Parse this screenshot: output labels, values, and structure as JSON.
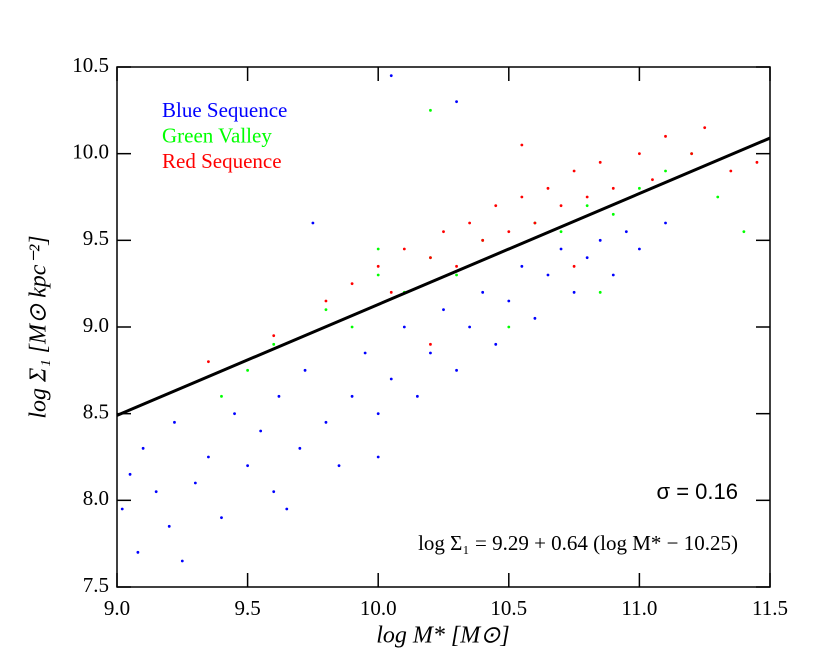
{
  "chart_data": {
    "type": "scatter",
    "xlabel": "log M* [M⊙]",
    "ylabel": "log Σ₁ [M⊙ kpc⁻²]",
    "xlim": [
      9.0,
      11.5
    ],
    "ylim": [
      7.5,
      10.5
    ],
    "xticks": [
      {
        "value": 9.0,
        "label": "9.0"
      },
      9.5,
      {
        "value": 10.0,
        "label": "10.0"
      },
      10.5,
      {
        "value": 11.0,
        "label": "11.0"
      },
      11.5
    ],
    "yticks": [
      7.5,
      {
        "value": 8.0,
        "label": "8.0"
      },
      8.5,
      {
        "value": 9.0,
        "label": "9.0"
      },
      9.5,
      {
        "value": 10.0,
        "label": "10.0"
      },
      10.5
    ],
    "legend": "upper left",
    "series": [
      {
        "name": "Blue Sequence",
        "color": "#0000ff",
        "x": [
          9.02,
          9.05,
          9.08,
          9.1,
          9.15,
          9.2,
          9.22,
          9.3,
          9.35,
          9.4,
          9.45,
          9.5,
          9.55,
          9.6,
          9.62,
          9.7,
          9.72,
          9.8,
          9.85,
          9.9,
          9.95,
          10.0,
          10.05,
          10.1,
          10.15,
          10.2,
          10.25,
          10.3,
          10.35,
          10.4,
          10.45,
          10.5,
          10.55,
          10.6,
          10.65,
          10.7,
          10.75,
          10.8,
          10.85,
          10.9,
          10.95,
          11.0,
          11.1,
          9.25,
          9.65,
          10.0,
          9.75,
          10.3,
          10.05
        ],
        "y": [
          7.95,
          8.15,
          7.7,
          8.3,
          8.05,
          7.85,
          8.45,
          8.1,
          8.25,
          7.9,
          8.5,
          8.2,
          8.4,
          8.05,
          8.6,
          8.3,
          8.75,
          8.45,
          8.2,
          8.6,
          8.85,
          8.5,
          8.7,
          9.0,
          8.6,
          8.85,
          9.1,
          8.75,
          9.0,
          9.2,
          8.9,
          9.15,
          9.35,
          9.05,
          9.3,
          9.45,
          9.2,
          9.4,
          9.5,
          9.3,
          9.55,
          9.45,
          9.6,
          7.65,
          7.95,
          8.25,
          9.6,
          10.3,
          10.45
        ]
      },
      {
        "name": "Green Valley",
        "color": "#00ff00",
        "x": [
          9.4,
          9.6,
          9.8,
          9.9,
          10.0,
          10.1,
          10.2,
          10.3,
          10.4,
          10.5,
          10.6,
          10.7,
          10.8,
          10.9,
          11.0,
          11.1,
          11.2,
          11.3,
          11.4,
          10.2,
          10.85,
          10.5,
          9.5,
          10.0
        ],
        "y": [
          8.6,
          8.9,
          9.1,
          9.0,
          9.3,
          9.2,
          9.4,
          9.3,
          9.5,
          9.45,
          9.6,
          9.55,
          9.7,
          9.65,
          9.8,
          9.9,
          10.0,
          9.75,
          9.55,
          10.25,
          9.2,
          9.0,
          8.75,
          9.45
        ]
      },
      {
        "name": "Red Sequence",
        "color": "#ff0000",
        "x": [
          9.35,
          9.6,
          9.8,
          9.9,
          10.0,
          10.05,
          10.1,
          10.2,
          10.25,
          10.3,
          10.35,
          10.4,
          10.45,
          10.5,
          10.55,
          10.6,
          10.65,
          10.7,
          10.75,
          10.8,
          10.85,
          10.9,
          11.0,
          11.05,
          11.1,
          11.2,
          11.25,
          11.35,
          11.45,
          10.55,
          10.2,
          10.75
        ],
        "y": [
          8.8,
          8.95,
          9.15,
          9.25,
          9.35,
          9.2,
          9.45,
          9.4,
          9.55,
          9.35,
          9.6,
          9.5,
          9.7,
          9.55,
          9.75,
          9.6,
          9.8,
          9.7,
          9.9,
          9.75,
          9.95,
          9.8,
          10.0,
          9.85,
          10.1,
          10.0,
          10.15,
          9.9,
          9.95,
          10.05,
          8.9,
          9.35
        ]
      }
    ],
    "fit_line": {
      "color": "#000000",
      "x": [
        9.0,
        11.5
      ],
      "y": [
        8.49,
        10.09
      ]
    },
    "annotations": [
      "σ = 0.16",
      "log Σ₁ = 9.29 + 0.64 (log M* − 10.25)"
    ]
  }
}
